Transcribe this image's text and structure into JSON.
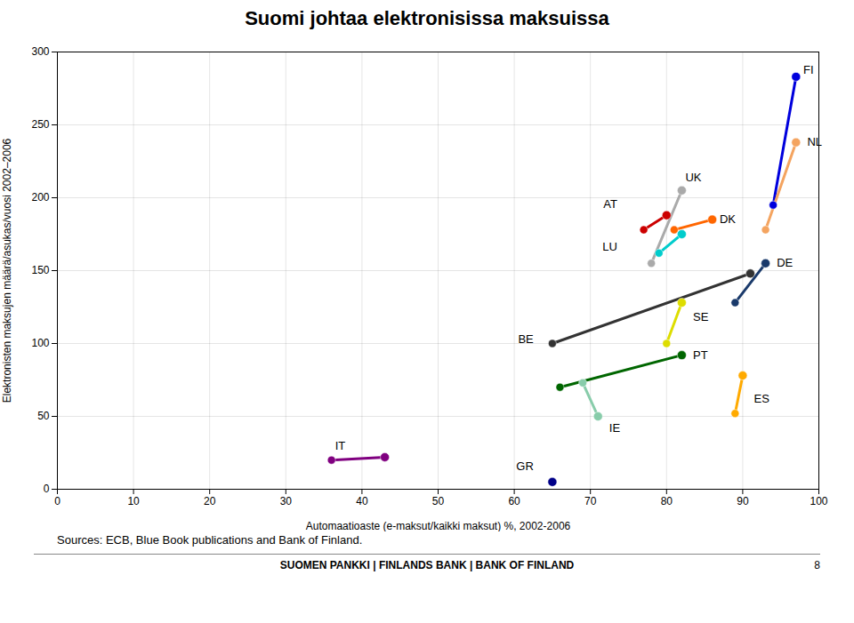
{
  "chart_data": {
    "type": "scatter",
    "title": "Suomi johtaa elektronisissa maksuissa",
    "xlabel": "Automaatioaste (e-maksut/kaikki maksut) %, 2002-2006",
    "ylabel": "Elektronisten maksujen määrä/asukas/vuosi 2002–2006",
    "source": "Sources: ECB, Blue Book publications and Bank of Finland.",
    "footer": "SUOMEN PANKKI | FINLANDS BANK | BANK OF FINLAND",
    "page": "8",
    "xlim": [
      0,
      100
    ],
    "ylim": [
      0,
      300
    ],
    "xticks": [
      0,
      10,
      20,
      30,
      40,
      50,
      60,
      70,
      80,
      90,
      100
    ],
    "yticks": [
      0,
      50,
      100,
      150,
      200,
      250,
      300
    ],
    "grid": true,
    "marker": "circle",
    "line_style": "solid",
    "series": [
      {
        "name": "FI",
        "color": "#0000dd",
        "x": [
          94,
          97
        ],
        "y": [
          195,
          283
        ]
      },
      {
        "name": "NL",
        "color": "#f4a460",
        "x": [
          93,
          97
        ],
        "y": [
          178,
          238
        ]
      },
      {
        "name": "UK",
        "color": "#aaaaaa",
        "x": [
          78,
          82
        ],
        "y": [
          155,
          205
        ]
      },
      {
        "name": "DK",
        "color": "#ff6600",
        "x": [
          81,
          86
        ],
        "y": [
          178,
          185
        ]
      },
      {
        "name": "AT",
        "color": "#cc0000",
        "x": [
          77,
          80
        ],
        "y": [
          178,
          188
        ]
      },
      {
        "name": "LU",
        "color": "#00cccc",
        "x": [
          79,
          82
        ],
        "y": [
          162,
          175
        ]
      },
      {
        "name": "DE",
        "color": "#1a3a6b",
        "x": [
          89,
          93
        ],
        "y": [
          128,
          155
        ]
      },
      {
        "name": "BE",
        "color": "#333333",
        "x": [
          65,
          91
        ],
        "y": [
          100,
          148
        ]
      },
      {
        "name": "SE",
        "color": "#dddd00",
        "x": [
          80,
          82
        ],
        "y": [
          100,
          128
        ]
      },
      {
        "name": "PT",
        "color": "#006600",
        "x": [
          66,
          82
        ],
        "y": [
          70,
          92
        ]
      },
      {
        "name": "IE",
        "color": "#88ccaa",
        "x": [
          69,
          71
        ],
        "y": [
          73,
          50
        ]
      },
      {
        "name": "ES",
        "color": "#ffaa00",
        "x": [
          89,
          90
        ],
        "y": [
          52,
          78
        ]
      },
      {
        "name": "IT",
        "color": "#800080",
        "x": [
          36,
          43
        ],
        "y": [
          20,
          22
        ]
      },
      {
        "name": "GR",
        "color": "#000088",
        "x": [
          65,
          65
        ],
        "y": [
          5,
          5
        ]
      }
    ],
    "annotations": [
      {
        "text": "FI",
        "x": 97.5,
        "y": 284
      },
      {
        "text": "NL",
        "x": 98,
        "y": 238
      },
      {
        "text": "UK",
        "x": 82,
        "y": 210
      },
      {
        "text": "DK",
        "x": 86.5,
        "y": 185
      },
      {
        "text": "AT",
        "x": 74,
        "y": 192
      },
      {
        "text": "LU",
        "x": 74,
        "y": 166
      },
      {
        "text": "DE",
        "x": 94,
        "y": 155
      },
      {
        "text": "BE",
        "x": 63,
        "y": 103
      },
      {
        "text": "SE",
        "x": 83,
        "y": 118
      },
      {
        "text": "PT",
        "x": 83,
        "y": 92
      },
      {
        "text": "IE",
        "x": 72,
        "y": 46
      },
      {
        "text": "ES",
        "x": 91,
        "y": 62
      },
      {
        "text": "IT",
        "x": 36,
        "y": 26
      },
      {
        "text": "GR",
        "x": 63,
        "y": 12
      }
    ]
  }
}
